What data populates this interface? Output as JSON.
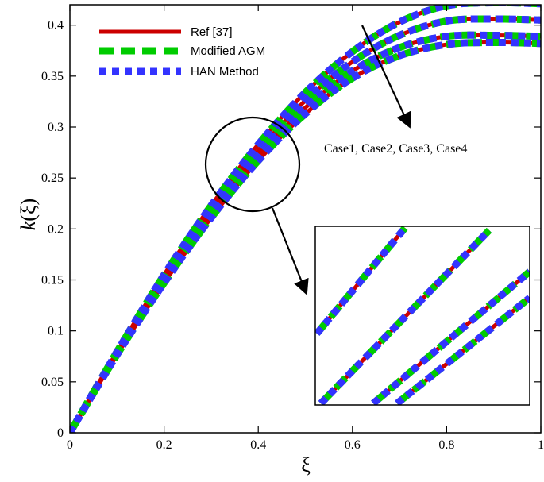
{
  "chart_data": {
    "type": "line",
    "xlabel": "ξ",
    "ylabel_main": "k",
    "ylabel_arg": "(ξ)",
    "xlim": [
      0,
      1
    ],
    "ylim": [
      0,
      0.42
    ],
    "xticks": [
      0,
      0.2,
      0.4,
      0.6,
      0.8,
      1
    ],
    "xtick_labels": [
      "0",
      "0.2",
      "0.4",
      "0.6",
      "0.8",
      "1"
    ],
    "yticks": [
      0,
      0.05,
      0.1,
      0.15,
      0.2,
      0.25,
      0.3,
      0.35,
      0.4
    ],
    "ytick_labels": [
      "0",
      "0.05",
      "0.1",
      "0.15",
      "0.2",
      "0.25",
      "0.3",
      "0.35",
      "0.4"
    ],
    "grid": false,
    "legend_position": "top-left",
    "legend": [
      {
        "name": "Ref [37]",
        "color": "#cc0000",
        "style": "solid"
      },
      {
        "name": "Modified AGM",
        "color": "#00cc00",
        "style": "dashed"
      },
      {
        "name": "HAN Method",
        "color": "#3333ff",
        "style": "dotted"
      }
    ],
    "annotation": "Case1, Case2, Case3, Case4",
    "x": [
      0,
      0.1,
      0.2,
      0.3,
      0.4,
      0.5,
      0.6,
      0.7,
      0.8,
      0.9,
      1.0
    ],
    "series": [
      {
        "values": [
          0,
          0.0795,
          0.155,
          0.223,
          0.283,
          0.334,
          0.374,
          0.403,
          0.419,
          0.422,
          0.421
        ]
      },
      {
        "values": [
          0,
          0.0785,
          0.152,
          0.219,
          0.277,
          0.326,
          0.364,
          0.39,
          0.404,
          0.406,
          0.405
        ]
      },
      {
        "values": [
          0,
          0.0775,
          0.15,
          0.215,
          0.272,
          0.319,
          0.355,
          0.378,
          0.389,
          0.39,
          0.389
        ]
      },
      {
        "values": [
          0,
          0.0765,
          0.147,
          0.211,
          0.267,
          0.313,
          0.348,
          0.37,
          0.381,
          0.383,
          0.382
        ]
      }
    ],
    "inset": {
      "description": "zoomed view of circled region",
      "xlim": [
        0.34,
        0.4
      ],
      "ylim": [
        0.225,
        0.272
      ]
    }
  }
}
